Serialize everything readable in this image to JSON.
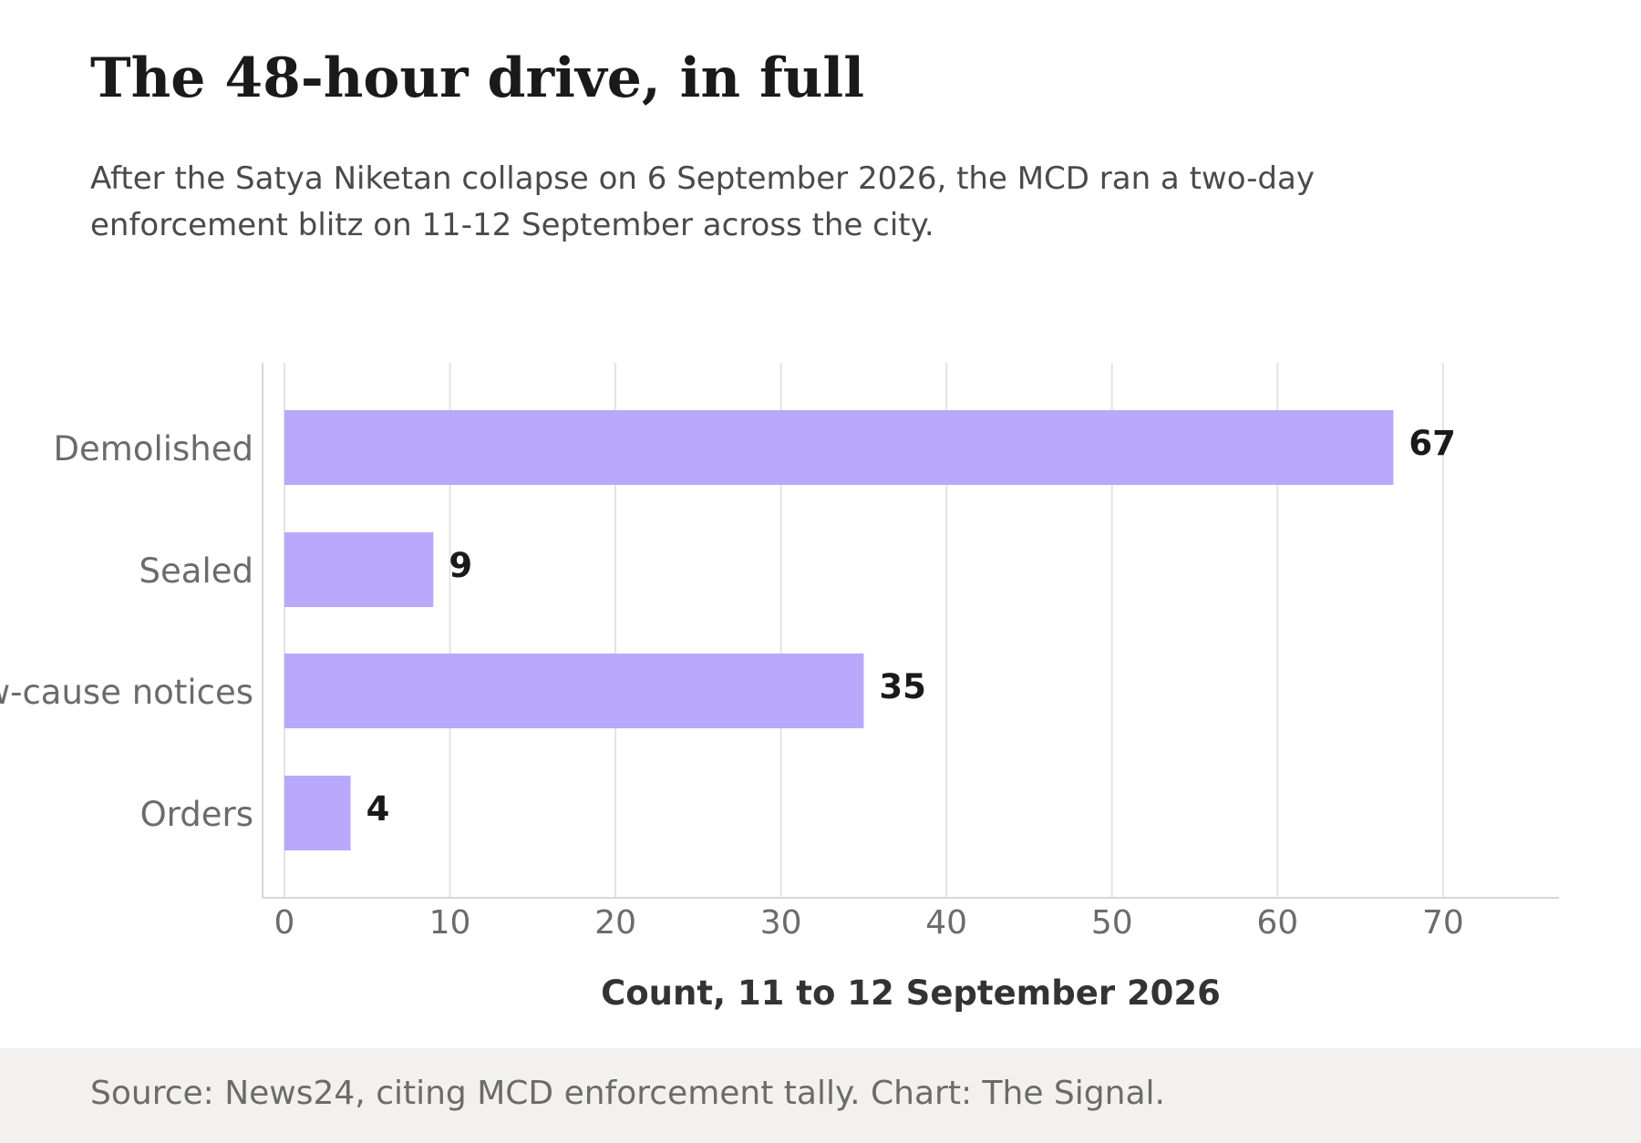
{
  "header": {
    "title": "The 48-hour drive, in full",
    "subtitle": "After the Satya Niketan collapse on 6 September 2026, the MCD ran a two-day enforcement blitz on 11-12 September across the city."
  },
  "chart_data": {
    "type": "bar",
    "orientation": "horizontal",
    "categories": [
      "Demolished",
      "Sealed",
      "Show-cause notices",
      "Orders"
    ],
    "values": [
      67,
      9,
      35,
      4
    ],
    "xlabel": "Count, 11 to 12 September 2026",
    "ylabel": "",
    "xlim": [
      0,
      76
    ],
    "xticks": [
      0,
      10,
      20,
      30,
      40,
      50,
      60,
      70
    ],
    "grid": "vertical",
    "legend": "none",
    "bar_color": "#b8a9fd",
    "label_color": "#1a1a1a",
    "tick_color": "#6b6b6b",
    "grid_color": "#e3e3e3"
  },
  "footer": {
    "source": "Source: News24, citing MCD enforcement tally. Chart: The Signal."
  }
}
